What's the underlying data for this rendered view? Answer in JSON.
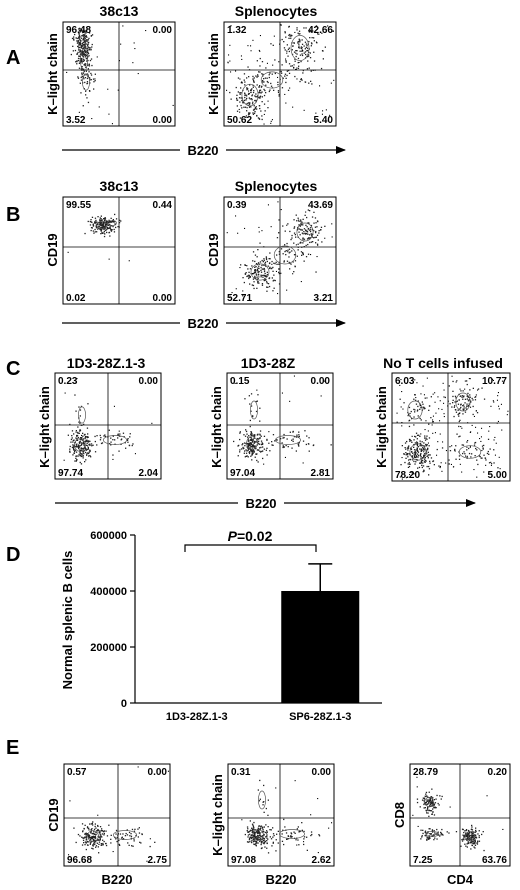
{
  "panels": {
    "A": {
      "letter": "A",
      "shared_xlabel": "B220",
      "plots": [
        {
          "title": "38c13",
          "ylabel": "K–light chain",
          "quadrants": {
            "ul": "96.48",
            "ur": "0.00",
            "ll": "3.52",
            "lr": "0.00"
          }
        },
        {
          "title": "Splenocytes",
          "ylabel": "K–light chain",
          "quadrants": {
            "ul": "1.32",
            "ur": "42.66",
            "ll": "50.62",
            "lr": "5.40"
          }
        }
      ]
    },
    "B": {
      "letter": "B",
      "shared_xlabel": "B220",
      "plots": [
        {
          "title": "38c13",
          "ylabel": "CD19",
          "quadrants": {
            "ul": "99.55",
            "ur": "0.44",
            "ll": "0.02",
            "lr": "0.00"
          }
        },
        {
          "title": "Splenocytes",
          "ylabel": "CD19",
          "quadrants": {
            "ul": "0.39",
            "ur": "43.69",
            "ll": "52.71",
            "lr": "3.21"
          }
        }
      ]
    },
    "C": {
      "letter": "C",
      "shared_xlabel": "B220",
      "plots": [
        {
          "title": "1D3-28Z.1-3",
          "ylabel": "K–light chain",
          "quadrants": {
            "ul": "0.23",
            "ur": "0.00",
            "ll": "97.74",
            "lr": "2.04"
          }
        },
        {
          "title": "1D3-28Z",
          "ylabel": "K–light chain",
          "quadrants": {
            "ul": "0.15",
            "ur": "0.00",
            "ll": "97.04",
            "lr": "2.81"
          }
        },
        {
          "title": "No T cells infused",
          "ylabel": "K–light chain",
          "quadrants": {
            "ul": "6.03",
            "ur": "10.77",
            "ll": "78.20",
            "lr": "5.00"
          }
        }
      ]
    },
    "E": {
      "letter": "E",
      "plots": [
        {
          "ylabel": "CD19",
          "xlabel": "B220",
          "quadrants": {
            "ul": "0.57",
            "ur": "0.00",
            "ll": "96.68",
            "lr": "2.75"
          }
        },
        {
          "ylabel": "K–light chain",
          "xlabel": "B220",
          "quadrants": {
            "ul": "0.31",
            "ur": "0.00",
            "ll": "97.08",
            "lr": "2.62"
          }
        },
        {
          "ylabel": "CD8",
          "xlabel": "CD4",
          "quadrants": {
            "ul": "28.79",
            "ur": "0.20",
            "ll": "7.25",
            "lr": "63.76"
          }
        }
      ]
    }
  },
  "chart_data": {
    "type": "bar",
    "panel": "D",
    "categories": [
      "1D3-28Z.1-3",
      "SP6-28Z.1-3"
    ],
    "values": [
      0,
      400000
    ],
    "errors": [
      0,
      97000
    ],
    "ylabel": "Normal splenic B cells",
    "ylim": [
      0,
      600000
    ],
    "yticks": [
      "0",
      "200000",
      "400000",
      "600000"
    ],
    "annotation_italic": "P",
    "annotation_rest": "=0.02",
    "bar_colors": [
      "#000000",
      "#000000"
    ]
  },
  "letter_D": "D"
}
